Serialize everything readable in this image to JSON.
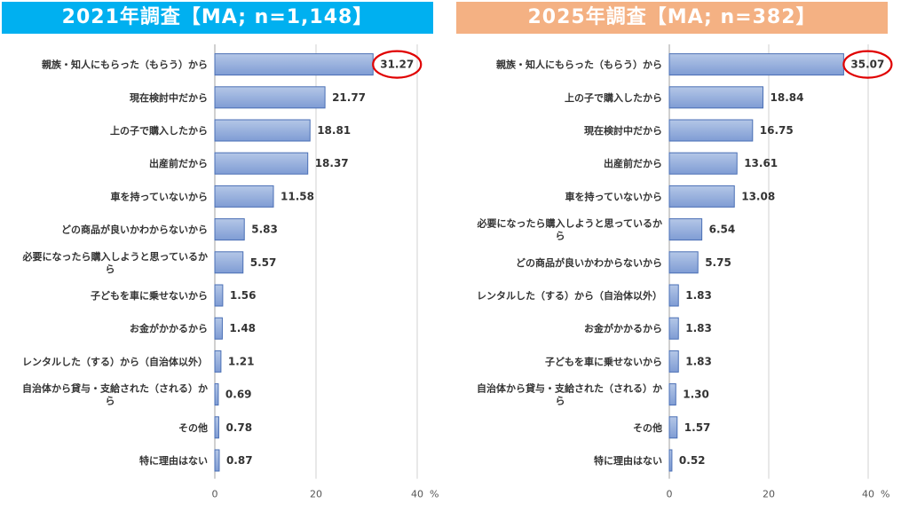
{
  "colors": {
    "header_left": "#00B0F0",
    "header_right": "#F4B183",
    "bar_fill_top": "#B4C7E7",
    "bar_fill_bottom": "#7F9CD4",
    "bar_stroke": "#4A6FB5",
    "highlight": "#E00000",
    "grid": "#D0D0D0"
  },
  "chart_data": [
    {
      "type": "bar",
      "orientation": "horizontal",
      "title": "2021年調査【MA; n=1,148】",
      "unit": "%",
      "xlim": [
        0,
        40
      ],
      "xticks": [
        "0",
        "20",
        "40"
      ],
      "grid": true,
      "highlighted_index": 0,
      "categories": [
        [
          "親族・知人にもらった（もらう）から"
        ],
        [
          "現在検討中だから"
        ],
        [
          "上の子で購入したから"
        ],
        [
          "出産前だから"
        ],
        [
          "車を持っていないから"
        ],
        [
          "どの商品が良いかわからないから"
        ],
        [
          "必要になったら購入しようと思っているか",
          "ら"
        ],
        [
          "子どもを車に乗せないから"
        ],
        [
          "お金がかかるから"
        ],
        [
          "レンタルした（する）から（自治体以外）"
        ],
        [
          "自治体から貸与・支給された（される）か",
          "ら"
        ],
        [
          "その他"
        ],
        [
          "特に理由はない"
        ]
      ],
      "values": [
        31.27,
        21.77,
        18.81,
        18.37,
        11.58,
        5.83,
        5.57,
        1.56,
        1.48,
        1.21,
        0.69,
        0.78,
        0.87
      ],
      "labels": [
        "31.27",
        "21.77",
        "18.81",
        "18.37",
        "11.58",
        "5.83",
        "5.57",
        "1.56",
        "1.48",
        "1.21",
        "0.69",
        "0.78",
        "0.87"
      ]
    },
    {
      "type": "bar",
      "orientation": "horizontal",
      "title": "2025年調査【MA; n=382】",
      "unit": "%",
      "xlim": [
        0,
        40
      ],
      "xticks": [
        "0",
        "20",
        "40"
      ],
      "grid": true,
      "highlighted_index": 0,
      "categories": [
        [
          "親族・知人にもらった（もらう）から"
        ],
        [
          "上の子で購入したから"
        ],
        [
          "現在検討中だから"
        ],
        [
          "出産前だから"
        ],
        [
          "車を持っていないから"
        ],
        [
          "必要になったら購入しようと思っているか",
          "ら"
        ],
        [
          "どの商品が良いかわからないから"
        ],
        [
          "レンタルした（する）から（自治体以外）"
        ],
        [
          "お金がかかるから"
        ],
        [
          "子どもを車に乗せないから"
        ],
        [
          "自治体から貸与・支給された（される）か",
          "ら"
        ],
        [
          "その他"
        ],
        [
          "特に理由はない"
        ]
      ],
      "values": [
        35.07,
        18.84,
        16.75,
        13.61,
        13.08,
        6.54,
        5.75,
        1.83,
        1.83,
        1.83,
        1.3,
        1.57,
        0.52
      ],
      "labels": [
        "35.07",
        "18.84",
        "16.75",
        "13.61",
        "13.08",
        "6.54",
        "5.75",
        "1.83",
        "1.83",
        "1.83",
        "1.30",
        "1.57",
        "0.52"
      ]
    }
  ]
}
